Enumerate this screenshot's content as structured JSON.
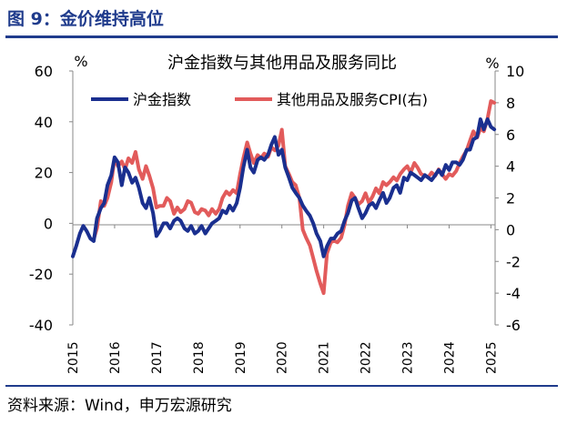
{
  "figure": {
    "title": "图 9：金价维持高位",
    "source": "资料来源：Wind，申万宏源研究"
  },
  "chart_data": {
    "type": "line",
    "title": "沪金指数与其他用品及服务同比",
    "left_axis_unit": "%",
    "right_axis_unit": "%",
    "ylim_left": [
      -40,
      60
    ],
    "yticks_left": [
      -40,
      -20,
      0,
      20,
      40,
      60
    ],
    "ylim_right": [
      -6,
      10
    ],
    "yticks_right": [
      -6,
      -4,
      -2,
      0,
      2,
      4,
      6,
      8,
      10
    ],
    "x_ticks": [
      "2015",
      "2016",
      "2017",
      "2018",
      "2019",
      "2020",
      "2021",
      "2022",
      "2023",
      "2024",
      "2025"
    ],
    "legend_position": "top",
    "series": [
      {
        "name": "沪金指数",
        "axis": "left",
        "color": "#1a2f8f",
        "points": [
          [
            2015.0,
            -13
          ],
          [
            2015.08,
            -9
          ],
          [
            2015.17,
            -4
          ],
          [
            2015.25,
            -1
          ],
          [
            2015.33,
            -3
          ],
          [
            2015.42,
            -6
          ],
          [
            2015.5,
            -7
          ],
          [
            2015.58,
            2
          ],
          [
            2015.67,
            6
          ],
          [
            2015.75,
            8
          ],
          [
            2015.83,
            15
          ],
          [
            2015.92,
            19
          ],
          [
            2016.0,
            26
          ],
          [
            2016.08,
            24
          ],
          [
            2016.17,
            15
          ],
          [
            2016.25,
            22
          ],
          [
            2016.33,
            20
          ],
          [
            2016.42,
            16
          ],
          [
            2016.5,
            18
          ],
          [
            2016.58,
            14
          ],
          [
            2016.67,
            8
          ],
          [
            2016.75,
            6
          ],
          [
            2016.83,
            10
          ],
          [
            2016.92,
            4
          ],
          [
            2017.0,
            -5
          ],
          [
            2017.08,
            -3
          ],
          [
            2017.17,
            0
          ],
          [
            2017.25,
            0
          ],
          [
            2017.33,
            -2
          ],
          [
            2017.42,
            1
          ],
          [
            2017.5,
            2
          ],
          [
            2017.58,
            1
          ],
          [
            2017.67,
            -2
          ],
          [
            2017.75,
            -3
          ],
          [
            2017.83,
            -1
          ],
          [
            2017.92,
            -4
          ],
          [
            2018.0,
            -3
          ],
          [
            2018.08,
            -1
          ],
          [
            2018.17,
            -4
          ],
          [
            2018.25,
            -2
          ],
          [
            2018.33,
            0
          ],
          [
            2018.42,
            1
          ],
          [
            2018.5,
            2
          ],
          [
            2018.58,
            5
          ],
          [
            2018.67,
            4
          ],
          [
            2018.75,
            7
          ],
          [
            2018.83,
            5
          ],
          [
            2018.92,
            8
          ],
          [
            2019.0,
            14
          ],
          [
            2019.08,
            22
          ],
          [
            2019.17,
            29
          ],
          [
            2019.25,
            22
          ],
          [
            2019.33,
            20
          ],
          [
            2019.42,
            25
          ],
          [
            2019.5,
            26
          ],
          [
            2019.58,
            25
          ],
          [
            2019.67,
            27
          ],
          [
            2019.75,
            31
          ],
          [
            2019.83,
            34
          ],
          [
            2019.92,
            27
          ],
          [
            2020.0,
            29
          ],
          [
            2020.08,
            22
          ],
          [
            2020.17,
            18
          ],
          [
            2020.25,
            14
          ],
          [
            2020.33,
            12
          ],
          [
            2020.42,
            10
          ],
          [
            2020.5,
            7
          ],
          [
            2020.58,
            5
          ],
          [
            2020.67,
            3
          ],
          [
            2020.75,
            0
          ],
          [
            2020.83,
            -4
          ],
          [
            2020.92,
            -7
          ],
          [
            2021.0,
            -13
          ],
          [
            2021.08,
            -9
          ],
          [
            2021.17,
            -6
          ],
          [
            2021.25,
            -6
          ],
          [
            2021.33,
            -4
          ],
          [
            2021.42,
            -3
          ],
          [
            2021.5,
            1
          ],
          [
            2021.58,
            4
          ],
          [
            2021.67,
            9
          ],
          [
            2021.75,
            10
          ],
          [
            2021.83,
            6
          ],
          [
            2021.92,
            2
          ],
          [
            2022.0,
            4
          ],
          [
            2022.08,
            7
          ],
          [
            2022.17,
            8
          ],
          [
            2022.25,
            6
          ],
          [
            2022.33,
            9
          ],
          [
            2022.42,
            12
          ],
          [
            2022.5,
            8
          ],
          [
            2022.58,
            10
          ],
          [
            2022.67,
            14
          ],
          [
            2022.75,
            15
          ],
          [
            2022.83,
            12
          ],
          [
            2022.92,
            18
          ],
          [
            2023.0,
            17
          ],
          [
            2023.08,
            20
          ],
          [
            2023.17,
            19
          ],
          [
            2023.25,
            18
          ],
          [
            2023.33,
            17
          ],
          [
            2023.42,
            19
          ],
          [
            2023.5,
            18
          ],
          [
            2023.58,
            17
          ],
          [
            2023.67,
            19
          ],
          [
            2023.75,
            21
          ],
          [
            2023.83,
            19
          ],
          [
            2023.92,
            23
          ],
          [
            2024.0,
            21
          ],
          [
            2024.08,
            24
          ],
          [
            2024.17,
            24
          ],
          [
            2024.25,
            23
          ],
          [
            2024.33,
            25
          ],
          [
            2024.42,
            29
          ],
          [
            2024.5,
            29
          ],
          [
            2024.58,
            33
          ],
          [
            2024.67,
            34
          ],
          [
            2024.75,
            41
          ],
          [
            2024.83,
            37
          ],
          [
            2024.92,
            41
          ],
          [
            2025.0,
            38
          ],
          [
            2025.08,
            37
          ]
        ]
      },
      {
        "name": "其他用品及服务CPI(右)",
        "axis": "right",
        "color": "#e25b5b",
        "points": [
          [
            2015.5,
            -0.6
          ],
          [
            2015.58,
            0.1
          ],
          [
            2015.67,
            1.8
          ],
          [
            2015.75,
            1.5
          ],
          [
            2015.83,
            2.0
          ],
          [
            2015.92,
            3.0
          ],
          [
            2016.0,
            4.5
          ],
          [
            2016.08,
            4.0
          ],
          [
            2016.17,
            4.3
          ],
          [
            2016.25,
            3.8
          ],
          [
            2016.33,
            4.5
          ],
          [
            2016.42,
            4.2
          ],
          [
            2016.5,
            4.9
          ],
          [
            2016.58,
            3.8
          ],
          [
            2016.67,
            3.2
          ],
          [
            2016.75,
            4.0
          ],
          [
            2016.83,
            3.4
          ],
          [
            2016.92,
            2.6
          ],
          [
            2017.0,
            1.4
          ],
          [
            2017.08,
            1.5
          ],
          [
            2017.17,
            1.5
          ],
          [
            2017.25,
            2.0
          ],
          [
            2017.33,
            1.8
          ],
          [
            2017.42,
            1.0
          ],
          [
            2017.5,
            1.4
          ],
          [
            2017.58,
            1.1
          ],
          [
            2017.67,
            1.3
          ],
          [
            2017.75,
            1.8
          ],
          [
            2017.83,
            1.7
          ],
          [
            2017.92,
            1.1
          ],
          [
            2018.0,
            1.0
          ],
          [
            2018.08,
            1.3
          ],
          [
            2018.17,
            1.2
          ],
          [
            2018.25,
            0.9
          ],
          [
            2018.33,
            1.3
          ],
          [
            2018.42,
            1.0
          ],
          [
            2018.5,
            1.3
          ],
          [
            2018.58,
            2.0
          ],
          [
            2018.67,
            2.4
          ],
          [
            2018.75,
            2.2
          ],
          [
            2018.83,
            2.5
          ],
          [
            2018.92,
            2.3
          ],
          [
            2019.0,
            3.5
          ],
          [
            2019.08,
            4.5
          ],
          [
            2019.17,
            5.5
          ],
          [
            2019.25,
            4.8
          ],
          [
            2019.33,
            4.2
          ],
          [
            2019.42,
            4.7
          ],
          [
            2019.5,
            4.5
          ],
          [
            2019.58,
            4.8
          ],
          [
            2019.67,
            4.6
          ],
          [
            2019.75,
            5.2
          ],
          [
            2019.83,
            5.0
          ],
          [
            2019.92,
            5.3
          ],
          [
            2020.0,
            6.3
          ],
          [
            2020.08,
            4.0
          ],
          [
            2020.17,
            3.5
          ],
          [
            2020.25,
            3.0
          ],
          [
            2020.33,
            2.8
          ],
          [
            2020.42,
            2.0
          ],
          [
            2020.5,
            0.0
          ],
          [
            2020.58,
            -0.5
          ],
          [
            2020.67,
            -1.0
          ],
          [
            2020.75,
            -1.8
          ],
          [
            2020.83,
            -2.6
          ],
          [
            2020.92,
            -3.4
          ],
          [
            2021.0,
            -4.0
          ],
          [
            2021.08,
            -1.5
          ],
          [
            2021.17,
            -0.8
          ],
          [
            2021.25,
            -0.7
          ],
          [
            2021.33,
            -0.8
          ],
          [
            2021.42,
            -0.5
          ],
          [
            2021.5,
            0.3
          ],
          [
            2021.58,
            1.5
          ],
          [
            2021.67,
            2.3
          ],
          [
            2021.75,
            2.0
          ],
          [
            2021.83,
            1.6
          ],
          [
            2021.92,
            1.8
          ],
          [
            2022.0,
            2.3
          ],
          [
            2022.08,
            1.7
          ],
          [
            2022.17,
            2.1
          ],
          [
            2022.25,
            2.6
          ],
          [
            2022.33,
            2.3
          ],
          [
            2022.42,
            3.0
          ],
          [
            2022.5,
            2.8
          ],
          [
            2022.58,
            3.0
          ],
          [
            2022.67,
            3.3
          ],
          [
            2022.75,
            3.1
          ],
          [
            2022.83,
            3.5
          ],
          [
            2022.92,
            3.8
          ],
          [
            2023.0,
            4.0
          ],
          [
            2023.08,
            3.6
          ],
          [
            2023.17,
            4.2
          ],
          [
            2023.25,
            3.9
          ],
          [
            2023.33,
            3.5
          ],
          [
            2023.42,
            3.4
          ],
          [
            2023.5,
            3.3
          ],
          [
            2023.58,
            3.6
          ],
          [
            2023.67,
            3.4
          ],
          [
            2023.75,
            3.8
          ],
          [
            2023.83,
            3.5
          ],
          [
            2023.92,
            3.2
          ],
          [
            2024.0,
            3.5
          ],
          [
            2024.08,
            3.4
          ],
          [
            2024.17,
            3.7
          ],
          [
            2024.25,
            4.2
          ],
          [
            2024.33,
            4.6
          ],
          [
            2024.42,
            5.0
          ],
          [
            2024.5,
            5.6
          ],
          [
            2024.58,
            6.2
          ],
          [
            2024.67,
            5.8
          ],
          [
            2024.75,
            6.4
          ],
          [
            2024.83,
            6.2
          ],
          [
            2024.92,
            7.0
          ],
          [
            2025.0,
            8.1
          ],
          [
            2025.08,
            8.0
          ]
        ]
      }
    ]
  }
}
